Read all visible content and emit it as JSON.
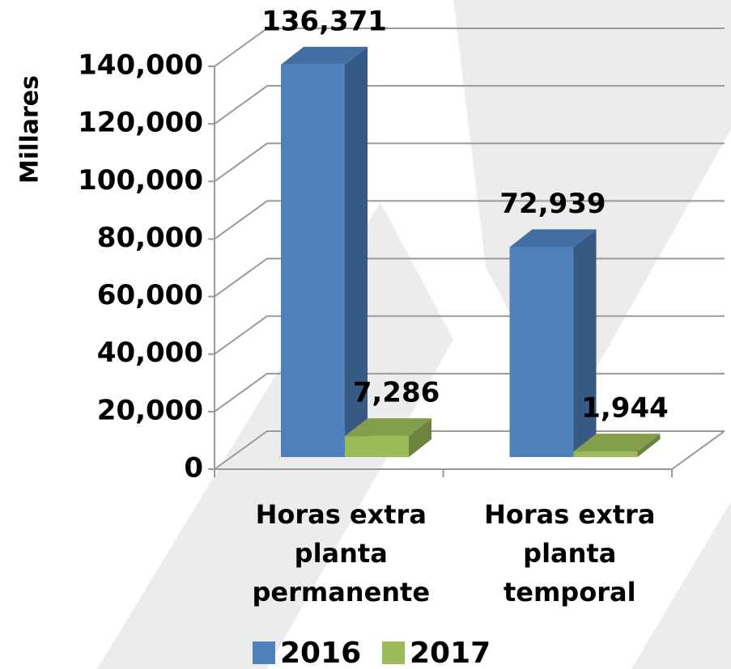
{
  "chart_data": {
    "type": "bar3d",
    "y_label": "Millares",
    "categories": [
      "Horas extra planta permanente",
      "Horas extra planta temporal"
    ],
    "series": [
      {
        "name": "2016",
        "color": "#4f81bd",
        "values": [
          136371,
          72939
        ],
        "value_labels": [
          "136,371",
          "72,939"
        ]
      },
      {
        "name": "2017",
        "color": "#9bbb59",
        "values": [
          7286,
          1944
        ],
        "value_labels": [
          "7,286",
          "1,944"
        ]
      }
    ],
    "ylim": [
      0,
      140000
    ],
    "yticks": [
      0,
      {
        "value": 20000,
        "label": "20,000"
      },
      {
        "value": 40000,
        "label": "40,000"
      },
      {
        "value": 60000,
        "label": "60,000"
      },
      {
        "value": 80000,
        "label": "80,000"
      },
      {
        "value": 100000,
        "label": "100,000"
      },
      {
        "value": 120000,
        "label": "120,000"
      },
      {
        "value": 140000,
        "label": "140,000"
      }
    ],
    "grid": true,
    "legend": "bottom"
  }
}
